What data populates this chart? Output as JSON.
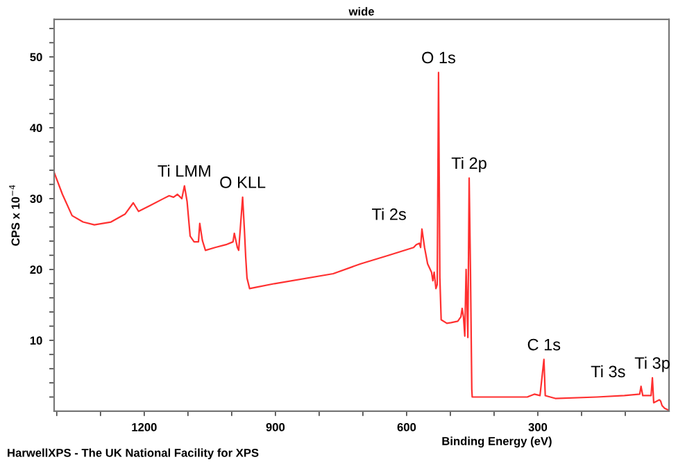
{
  "chart_data": {
    "type": "line",
    "title": "wide",
    "xlabel": "Binding Energy (eV)",
    "ylabel": "CPS x 10$^{−4}$",
    "x": [
      1406,
      1387,
      1365,
      1340,
      1314,
      1276,
      1244,
      1225,
      1213,
      1187,
      1156,
      1143,
      1133,
      1124,
      1114,
      1108,
      1102,
      1095,
      1086,
      1076,
      1073,
      1067,
      1060,
      1038,
      1013,
      997,
      994,
      987,
      984,
      975,
      971,
      968,
      965,
      959,
      943,
      902,
      768,
      705,
      641,
      584,
      578,
      571,
      568,
      565,
      559,
      552,
      543,
      540,
      537,
      533,
      530,
      527,
      524,
      521,
      508,
      498,
      483,
      476,
      473,
      470,
      467,
      464,
      460,
      457,
      454,
      451,
      450,
      419,
      324,
      308,
      295,
      286,
      283,
      260,
      165,
      102,
      67,
      64,
      60,
      41,
      38,
      35,
      22,
      19,
      16,
      10,
      3
    ],
    "series": [
      {
        "color": "#ff3030",
        "values": [
          33.7,
          30.6,
          27.6,
          26.7,
          26.3,
          26.7,
          27.8,
          29.4,
          28.2,
          29.0,
          30.0,
          30.4,
          30.2,
          30.6,
          30.0,
          31.8,
          29.6,
          24.7,
          23.9,
          23.9,
          26.5,
          24.1,
          22.7,
          23.1,
          23.5,
          23.9,
          25.1,
          23.1,
          22.7,
          30.2,
          25.7,
          21.8,
          18.8,
          17.3,
          17.5,
          18.0,
          19.4,
          20.8,
          22.0,
          23.1,
          23.5,
          23.7,
          23.1,
          25.7,
          23.1,
          20.8,
          19.6,
          18.4,
          19.6,
          17.3,
          17.9,
          47.8,
          18.8,
          12.9,
          12.4,
          12.5,
          12.7,
          13.3,
          14.5,
          13.3,
          10.6,
          20.0,
          10.4,
          32.9,
          19.8,
          3.1,
          2.0,
          2.0,
          2.0,
          2.4,
          2.2,
          7.3,
          2.2,
          1.8,
          2.0,
          2.2,
          2.4,
          3.5,
          2.2,
          2.2,
          4.7,
          1.2,
          1.6,
          1.4,
          0.8,
          0.4,
          0.2
        ]
      }
    ],
    "xlim": [
      1406,
      0
    ],
    "ylim": [
      0,
      55.3
    ],
    "xticks": [
      {
        "value": 1400,
        "label": null
      },
      {
        "value": 1300,
        "label": null
      },
      1200,
      {
        "value": 1100,
        "label": null
      },
      {
        "value": 1000,
        "label": null
      },
      900,
      {
        "value": 800,
        "label": null
      },
      {
        "value": 700,
        "label": null
      },
      600,
      {
        "value": 500,
        "label": null
      },
      {
        "value": 400,
        "label": null
      },
      300,
      {
        "value": 200,
        "label": null
      },
      {
        "value": 100,
        "label": null
      }
    ],
    "yticks": [
      {
        "value": 2,
        "label": null
      },
      {
        "value": 4,
        "label": null
      },
      {
        "value": 6,
        "label": null
      },
      {
        "value": 8,
        "label": null
      },
      10,
      {
        "value": 12,
        "label": null
      },
      {
        "value": 14,
        "label": null
      },
      {
        "value": 16,
        "label": null
      },
      {
        "value": 18,
        "label": null
      },
      20,
      {
        "value": 22,
        "label": null
      },
      {
        "value": 24,
        "label": null
      },
      {
        "value": 26,
        "label": null
      },
      {
        "value": 28,
        "label": null
      },
      30,
      {
        "value": 32,
        "label": null
      },
      {
        "value": 34,
        "label": null
      },
      {
        "value": 36,
        "label": null
      },
      {
        "value": 38,
        "label": null
      },
      40,
      {
        "value": 42,
        "label": null
      },
      {
        "value": 44,
        "label": null
      },
      {
        "value": 46,
        "label": null
      },
      {
        "value": 48,
        "label": null
      },
      50,
      {
        "value": 52,
        "label": null
      },
      {
        "value": 54,
        "label": null
      }
    ],
    "grid": false,
    "legend": false,
    "marker": "none",
    "line_style": "solid",
    "annotations": [
      {
        "text": "Ti LMM",
        "x": 1108,
        "y": 31.8
      },
      {
        "text": "O KLL",
        "x": 975,
        "y": 30.2
      },
      {
        "text": "Ti 2s",
        "x": 565,
        "y": 25.7
      },
      {
        "text": "O 1s",
        "x": 527,
        "y": 47.8
      },
      {
        "text": "Ti 2p",
        "x": 457,
        "y": 32.9
      },
      {
        "text": "C 1s",
        "x": 286,
        "y": 7.3
      },
      {
        "text": "Ti 3s",
        "x": 64,
        "y": 3.5
      },
      {
        "text": "Ti 3p",
        "x": 38,
        "y": 4.7
      },
      "HarwellXPS - The UK National Facility for XPS"
    ]
  }
}
